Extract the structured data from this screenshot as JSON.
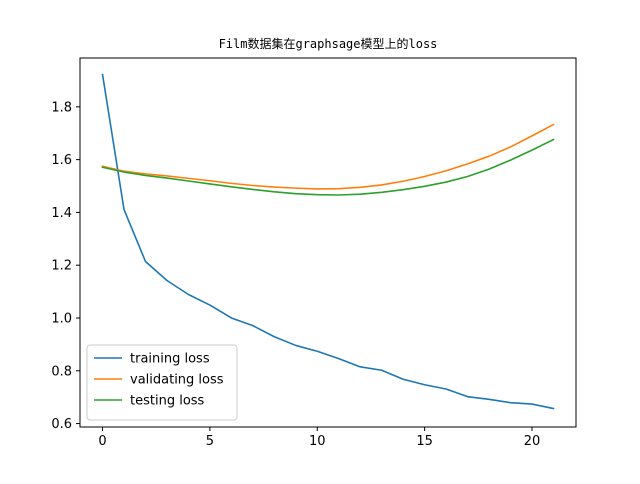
{
  "chart_data": {
    "type": "line",
    "title": "Film数据集在graphsage模型上的loss",
    "xlabel": "",
    "ylabel": "",
    "xlim": [
      -1.05,
      22.05
    ],
    "ylim": [
      0.587,
      1.985
    ],
    "xticks": [
      0,
      5,
      10,
      15,
      20
    ],
    "xtick_labels": [
      "0",
      "5",
      "10",
      "15",
      "20"
    ],
    "yticks": [
      0.6,
      0.8,
      1.0,
      1.2,
      1.4,
      1.6,
      1.8
    ],
    "ytick_labels": [
      "0.6",
      "0.8",
      "1.0",
      "1.2",
      "1.4",
      "1.6",
      "1.8"
    ],
    "grid": false,
    "legend_position": "lower-left",
    "x": [
      0,
      1,
      2,
      3,
      4,
      5,
      6,
      7,
      8,
      9,
      10,
      11,
      12,
      13,
      14,
      15,
      16,
      17,
      18,
      19,
      20,
      21
    ],
    "series": [
      {
        "name": "training loss",
        "color": "#1f77b4",
        "values": [
          1.922,
          1.411,
          1.214,
          1.142,
          1.089,
          1.049,
          1.0,
          0.971,
          0.929,
          0.896,
          0.874,
          0.846,
          0.815,
          0.802,
          0.768,
          0.747,
          0.731,
          0.702,
          0.692,
          0.679,
          0.674,
          0.657
        ]
      },
      {
        "name": "validating loss",
        "color": "#ff7f0e",
        "values": [
          1.575,
          1.556,
          1.546,
          1.538,
          1.529,
          1.52,
          1.51,
          1.502,
          1.496,
          1.492,
          1.489,
          1.49,
          1.495,
          1.504,
          1.518,
          1.536,
          1.558,
          1.584,
          1.613,
          1.648,
          1.69,
          1.733
        ]
      },
      {
        "name": "testing loss",
        "color": "#2ca02c",
        "values": [
          1.571,
          1.553,
          1.54,
          1.53,
          1.519,
          1.508,
          1.497,
          1.487,
          1.478,
          1.471,
          1.467,
          1.466,
          1.469,
          1.476,
          1.486,
          1.499,
          1.515,
          1.536,
          1.564,
          1.598,
          1.636,
          1.676
        ]
      }
    ]
  }
}
